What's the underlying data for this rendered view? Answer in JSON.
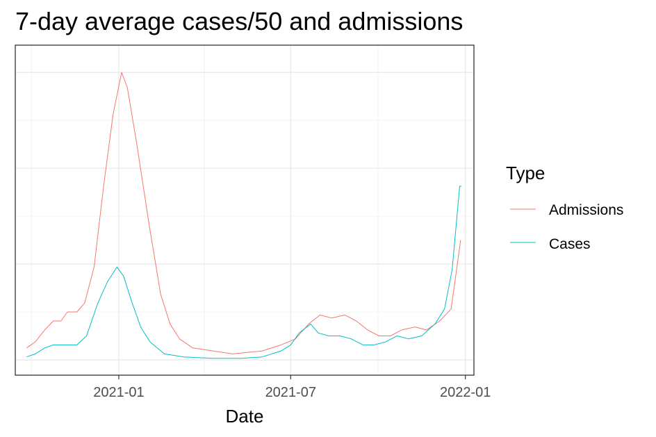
{
  "chart_data": {
    "type": "line",
    "title": "7-day average cases/50 and admissions",
    "xlabel": "Date",
    "ylabel": "",
    "x_ticks": [
      "2021-01",
      "2021-07",
      "2022-01"
    ],
    "xlim": [
      "2020-09-14",
      "2022-01-10"
    ],
    "ylim": [
      0,
      100
    ],
    "y_axis_labels_shown": false,
    "grid": true,
    "legend": {
      "title": "Type",
      "placement": "right"
    },
    "series": [
      {
        "name": "Admissions",
        "color": "#F8766D",
        "points": [
          [
            "2020-09-26",
            4
          ],
          [
            "2020-10-05",
            6
          ],
          [
            "2020-10-15",
            10
          ],
          [
            "2020-10-24",
            13
          ],
          [
            "2020-11-01",
            13
          ],
          [
            "2020-11-08",
            16
          ],
          [
            "2020-11-18",
            16
          ],
          [
            "2020-11-26",
            19
          ],
          [
            "2020-12-06",
            31
          ],
          [
            "2020-12-16",
            58
          ],
          [
            "2020-12-26",
            82
          ],
          [
            "2021-01-04",
            96
          ],
          [
            "2021-01-10",
            91
          ],
          [
            "2021-01-20",
            72
          ],
          [
            "2021-02-02",
            45
          ],
          [
            "2021-02-14",
            22
          ],
          [
            "2021-02-24",
            12
          ],
          [
            "2021-03-06",
            7
          ],
          [
            "2021-03-20",
            4
          ],
          [
            "2021-04-10",
            3
          ],
          [
            "2021-05-01",
            2
          ],
          [
            "2021-06-01",
            3
          ],
          [
            "2021-06-21",
            5
          ],
          [
            "2021-07-06",
            7
          ],
          [
            "2021-07-20",
            12
          ],
          [
            "2021-08-01",
            15
          ],
          [
            "2021-08-13",
            14
          ],
          [
            "2021-08-27",
            15
          ],
          [
            "2021-09-08",
            13
          ],
          [
            "2021-09-20",
            10
          ],
          [
            "2021-10-02",
            8
          ],
          [
            "2021-10-14",
            8
          ],
          [
            "2021-10-26",
            10
          ],
          [
            "2021-11-09",
            11
          ],
          [
            "2021-11-21",
            10
          ],
          [
            "2021-12-05",
            13
          ],
          [
            "2021-12-17",
            17
          ],
          [
            "2021-12-27",
            40
          ]
        ]
      },
      {
        "name": "Cases",
        "color": "#00BFC4",
        "points": [
          [
            "2020-09-26",
            1
          ],
          [
            "2020-10-05",
            2
          ],
          [
            "2020-10-15",
            4
          ],
          [
            "2020-10-24",
            5
          ],
          [
            "2020-11-08",
            5
          ],
          [
            "2020-11-18",
            5
          ],
          [
            "2020-11-28",
            8
          ],
          [
            "2020-12-10",
            19
          ],
          [
            "2020-12-20",
            26
          ],
          [
            "2020-12-30",
            31
          ],
          [
            "2021-01-06",
            28
          ],
          [
            "2021-01-14",
            20
          ],
          [
            "2021-01-24",
            11
          ],
          [
            "2021-02-03",
            6
          ],
          [
            "2021-02-18",
            2
          ],
          [
            "2021-03-10",
            1
          ],
          [
            "2021-04-10",
            0.5
          ],
          [
            "2021-05-10",
            0.5
          ],
          [
            "2021-06-01",
            1
          ],
          [
            "2021-06-21",
            3
          ],
          [
            "2021-07-01",
            5
          ],
          [
            "2021-07-10",
            9
          ],
          [
            "2021-07-22",
            12
          ],
          [
            "2021-07-30",
            9
          ],
          [
            "2021-08-10",
            8
          ],
          [
            "2021-08-22",
            8
          ],
          [
            "2021-09-03",
            7
          ],
          [
            "2021-09-15",
            5
          ],
          [
            "2021-09-27",
            5
          ],
          [
            "2021-10-09",
            6
          ],
          [
            "2021-10-21",
            8
          ],
          [
            "2021-11-02",
            7
          ],
          [
            "2021-11-16",
            8
          ],
          [
            "2021-11-30",
            12
          ],
          [
            "2021-12-10",
            17
          ],
          [
            "2021-12-18",
            30
          ],
          [
            "2021-12-26",
            58
          ],
          [
            "2021-12-28",
            58
          ]
        ]
      }
    ]
  }
}
